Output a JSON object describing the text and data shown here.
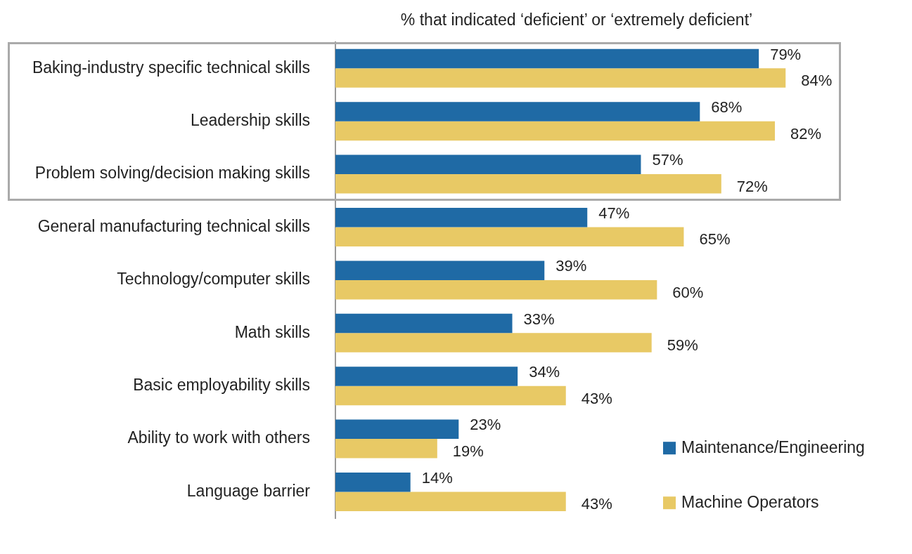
{
  "chart_data": {
    "type": "bar",
    "orientation": "horizontal",
    "title": "% that indicated ‘deficient’ or ‘extremely deficient’",
    "categories": [
      "Baking-industry specific technical skills",
      "Leadership skills",
      "Problem solving/decision making skills",
      "General manufacturing technical skills",
      "Technology/computer skills",
      "Math skills",
      "Basic employability skills",
      "Ability to work with others",
      "Language barrier"
    ],
    "series": [
      {
        "name": "Maintenance/Engineering",
        "color": "#1f6aa5",
        "values": [
          79,
          68,
          57,
          47,
          39,
          33,
          34,
          23,
          14
        ],
        "value_labels": [
          "79%",
          "68%",
          "57%",
          "47%",
          "39%",
          "33%",
          "34%",
          "23%",
          "14%"
        ]
      },
      {
        "name": "Machine Operators",
        "color": "#e8c965",
        "values": [
          84,
          82,
          72,
          65,
          60,
          59,
          43,
          19,
          43
        ],
        "value_labels": [
          "84%",
          "82%",
          "72%",
          "65%",
          "60%",
          "59%",
          "43%",
          "19%",
          "43%"
        ]
      }
    ],
    "tick_labels": "y",
    "legend": "bottom right"
  }
}
